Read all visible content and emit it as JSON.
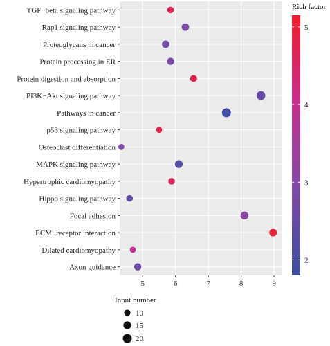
{
  "chart_data": {
    "type": "scatter",
    "title": "",
    "xlabel": "",
    "ylabel": "",
    "xlim": [
      4.3,
      9.25
    ],
    "xticks": [
      5,
      6,
      7,
      8,
      9
    ],
    "grid": true,
    "background": "#ebebeb",
    "points": [
      {
        "term": "TGF−beta signaling pathway",
        "x": 5.85,
        "rich_factor": 4.7,
        "input_number": 11
      },
      {
        "term": "Rap1 signaling pathway",
        "x": 6.3,
        "rich_factor": 2.9,
        "input_number": 14
      },
      {
        "term": "Proteoglycans in cancer",
        "x": 5.7,
        "rich_factor": 2.7,
        "input_number": 14
      },
      {
        "term": "Protein processing in ER",
        "x": 5.85,
        "rich_factor": 2.9,
        "input_number": 13
      },
      {
        "term": "Protein digestion and absorption",
        "x": 6.55,
        "rich_factor": 4.8,
        "input_number": 12
      },
      {
        "term": "PI3K−Akt signaling pathway",
        "x": 8.6,
        "rich_factor": 2.5,
        "input_number": 19
      },
      {
        "term": "Pathways in cancer",
        "x": 7.55,
        "rich_factor": 1.9,
        "input_number": 20
      },
      {
        "term": "p53 signaling pathway",
        "x": 5.5,
        "rich_factor": 4.8,
        "input_number": 9
      },
      {
        "term": "Osteoclast differentiation",
        "x": 4.35,
        "rich_factor": 2.9,
        "input_number": 9
      },
      {
        "term": "MAPK signaling pathway",
        "x": 6.1,
        "rich_factor": 2.2,
        "input_number": 15
      },
      {
        "term": "Hypertrophic cardiomyopathy",
        "x": 5.88,
        "rich_factor": 4.6,
        "input_number": 11
      },
      {
        "term": "Hippo signaling pathway",
        "x": 4.6,
        "rich_factor": 2.4,
        "input_number": 11
      },
      {
        "term": "Focal adhesion",
        "x": 8.1,
        "rich_factor": 3.1,
        "input_number": 16
      },
      {
        "term": "ECM−receptor interaction",
        "x": 8.97,
        "rich_factor": 5.0,
        "input_number": 14
      },
      {
        "term": "Dilated cardiomyopathy",
        "x": 4.7,
        "rich_factor": 3.8,
        "input_number": 9
      },
      {
        "term": "Axon guidance",
        "x": 4.85,
        "rich_factor": 2.6,
        "input_number": 13
      }
    ],
    "color_legend": {
      "title": "Rich factor",
      "min": 1.8,
      "max": 5.15,
      "ticks": [
        2,
        3,
        4,
        5
      ],
      "colors": [
        "#3b4ca3",
        "#7e4aa6",
        "#c72f8e",
        "#ee1d2b"
      ]
    },
    "size_legend": {
      "title": "Input number",
      "values": [
        10,
        15,
        20
      ]
    }
  }
}
